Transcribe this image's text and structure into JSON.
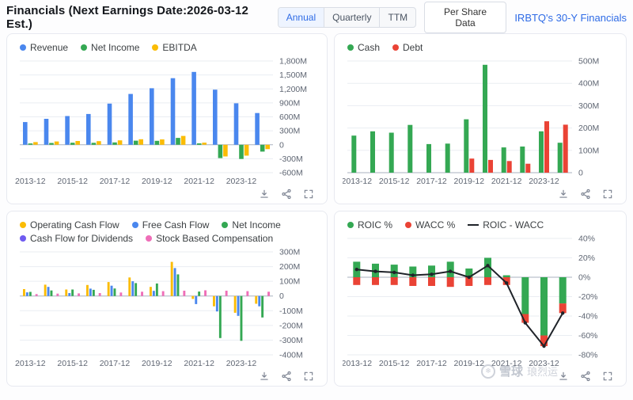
{
  "header": {
    "title": "Financials (Next Earnings Date:2026-03-12 Est.)",
    "tabs": [
      "Annual",
      "Quarterly",
      "TTM"
    ],
    "active_tab": "Annual",
    "per_share_button": "Per Share Data",
    "link": "IRBTQ's 30-Y Financials"
  },
  "watermark": {
    "brand": "雪球",
    "user": "琅烈运"
  },
  "colors": {
    "blue": "#4a87ee",
    "green": "#34a853",
    "yellow": "#fbbc05",
    "red": "#ea4335",
    "purple": "#6f5bf0",
    "pink": "#ef6eb8",
    "line": "#1f2329",
    "link_blue": "#2e6be6"
  },
  "card_icons": [
    "download",
    "share",
    "fullscreen"
  ],
  "chart_data": [
    {
      "id": "income-statement",
      "type": "bar",
      "unit": "USD millions",
      "categories": [
        "2013-12",
        "2014-12",
        "2015-12",
        "2016-12",
        "2017-12",
        "2018-12",
        "2019-12",
        "2020-12",
        "2021-12",
        "2022-12",
        "2023-12",
        "2024-12"
      ],
      "x_tick_labels": [
        "2013-12",
        "2015-12",
        "2017-12",
        "2019-12",
        "2021-12",
        "2023-12"
      ],
      "ylim": [
        -600,
        1800
      ],
      "grid": true,
      "legend_position": "top",
      "yticks": [
        {
          "v": 1800,
          "label": "1,800M"
        },
        {
          "v": 1500,
          "label": "1,500M"
        },
        {
          "v": 1200,
          "label": "1,200M"
        },
        {
          "v": 900,
          "label": "900M"
        },
        {
          "v": 600,
          "label": "600M"
        },
        {
          "v": 300,
          "label": "300M"
        },
        {
          "v": 0,
          "label": "0"
        },
        {
          "v": -300,
          "label": "-300M"
        },
        {
          "v": -600,
          "label": "-600M"
        }
      ],
      "series": [
        {
          "name": "Revenue",
          "color": "#4a87ee",
          "values": [
            487,
            557,
            617,
            661,
            884,
            1092,
            1214,
            1430,
            1565,
            1183,
            891,
            682
          ]
        },
        {
          "name": "Net Income",
          "color": "#34a853",
          "values": [
            28,
            38,
            44,
            42,
            51,
            88,
            85,
            147,
            30,
            -286,
            -305,
            -146
          ]
        },
        {
          "name": "EBITDA",
          "color": "#fbbc05",
          "values": [
            57,
            70,
            80,
            77,
            95,
            118,
            115,
            190,
            45,
            -250,
            -233,
            -94
          ]
        }
      ]
    },
    {
      "id": "balance-sheet",
      "type": "bar",
      "unit": "USD millions",
      "categories": [
        "2013-12",
        "2014-12",
        "2015-12",
        "2016-12",
        "2017-12",
        "2018-12",
        "2019-12",
        "2020-12",
        "2021-12",
        "2022-12",
        "2023-12",
        "2024-12"
      ],
      "x_tick_labels": [
        "2013-12",
        "2015-12",
        "2017-12",
        "2019-12",
        "2021-12",
        "2023-12"
      ],
      "ylim": [
        0,
        500
      ],
      "grid": true,
      "legend_position": "top",
      "yticks": [
        {
          "v": 500,
          "label": "500M"
        },
        {
          "v": 400,
          "label": "400M"
        },
        {
          "v": 300,
          "label": "300M"
        },
        {
          "v": 200,
          "label": "200M"
        },
        {
          "v": 100,
          "label": "100M"
        },
        {
          "v": 0,
          "label": "0"
        }
      ],
      "series": [
        {
          "name": "Cash",
          "color": "#34a853",
          "values": [
            166,
            185,
            179,
            214,
            128,
            130,
            239,
            483,
            113,
            117,
            185,
            134
          ]
        },
        {
          "name": "Debt",
          "color": "#ea4335",
          "values": [
            0,
            0,
            0,
            0,
            0,
            0,
            63,
            57,
            52,
            40,
            230,
            215
          ]
        }
      ]
    },
    {
      "id": "cash-flow",
      "type": "bar",
      "unit": "USD millions",
      "categories": [
        "2013-12",
        "2014-12",
        "2015-12",
        "2016-12",
        "2017-12",
        "2018-12",
        "2019-12",
        "2020-12",
        "2021-12",
        "2022-12",
        "2023-12",
        "2024-12"
      ],
      "x_tick_labels": [
        "2013-12",
        "2015-12",
        "2017-12",
        "2019-12",
        "2021-12",
        "2023-12"
      ],
      "ylim": [
        -400,
        300
      ],
      "grid": true,
      "legend_position": "top",
      "yticks": [
        {
          "v": 300,
          "label": "300M"
        },
        {
          "v": 200,
          "label": "200M"
        },
        {
          "v": 100,
          "label": "100M"
        },
        {
          "v": 0,
          "label": "0"
        },
        {
          "v": -100,
          "label": "-100M"
        },
        {
          "v": -200,
          "label": "-200M"
        },
        {
          "v": -300,
          "label": "-300M"
        },
        {
          "v": -400,
          "label": "-400M"
        }
      ],
      "series": [
        {
          "name": "Operating Cash Flow",
          "color": "#fbbc05",
          "values": [
            47,
            77,
            44,
            75,
            95,
            126,
            62,
            232,
            -20,
            -70,
            -114,
            -53
          ]
        },
        {
          "name": "Free Cash Flow",
          "color": "#4a87ee",
          "values": [
            25,
            62,
            20,
            50,
            70,
            100,
            35,
            190,
            -55,
            -105,
            -135,
            -70
          ]
        },
        {
          "name": "Net Income",
          "color": "#34a853",
          "values": [
            28,
            38,
            44,
            42,
            51,
            88,
            85,
            147,
            30,
            -286,
            -305,
            -146
          ]
        },
        {
          "name": "Cash Flow for Dividends",
          "color": "#6f5bf0",
          "values": [
            0,
            0,
            0,
            0,
            0,
            0,
            0,
            0,
            0,
            0,
            0,
            0
          ]
        },
        {
          "name": "Stock Based Compensation",
          "color": "#ef6eb8",
          "values": [
            13,
            16,
            18,
            20,
            24,
            29,
            33,
            36,
            39,
            36,
            33,
            29
          ]
        }
      ]
    },
    {
      "id": "roic-wacc",
      "type": "bar",
      "unit": "percent",
      "overlap": true,
      "categories": [
        "2013-12",
        "2014-12",
        "2015-12",
        "2016-12",
        "2017-12",
        "2018-12",
        "2019-12",
        "2020-12",
        "2021-12",
        "2022-12",
        "2023-12",
        "2024-12"
      ],
      "x_tick_labels": [
        "2013-12",
        "2015-12",
        "2017-12",
        "2019-12",
        "2021-12",
        "2023-12"
      ],
      "ylim": [
        -80,
        40
      ],
      "grid": true,
      "legend_position": "top",
      "yticks": [
        {
          "v": 40,
          "label": "40%"
        },
        {
          "v": 20,
          "label": "20%"
        },
        {
          "v": 0,
          "label": "0%"
        },
        {
          "v": -20,
          "label": "-20%"
        },
        {
          "v": -40,
          "label": "-40%"
        },
        {
          "v": -60,
          "label": "-60%"
        },
        {
          "v": -80,
          "label": "-80%"
        }
      ],
      "series": [
        {
          "name": "ROIC %",
          "color": "#34a853",
          "values": [
            16,
            14,
            13,
            11,
            12,
            16,
            9,
            20,
            2,
            -38,
            -60,
            -27
          ]
        },
        {
          "name": "WACC %",
          "color": "#ea4335",
          "stack_below_first": true,
          "values": [
            8,
            8,
            8,
            9,
            9,
            10,
            9,
            8,
            8,
            9,
            11,
            10
          ]
        },
        {
          "name": "ROIC - WACC",
          "color": "#1f2329",
          "type": "line",
          "values": [
            8,
            6,
            5,
            2,
            3,
            6,
            0,
            12,
            -6,
            -47,
            -71,
            -37
          ]
        }
      ]
    }
  ]
}
